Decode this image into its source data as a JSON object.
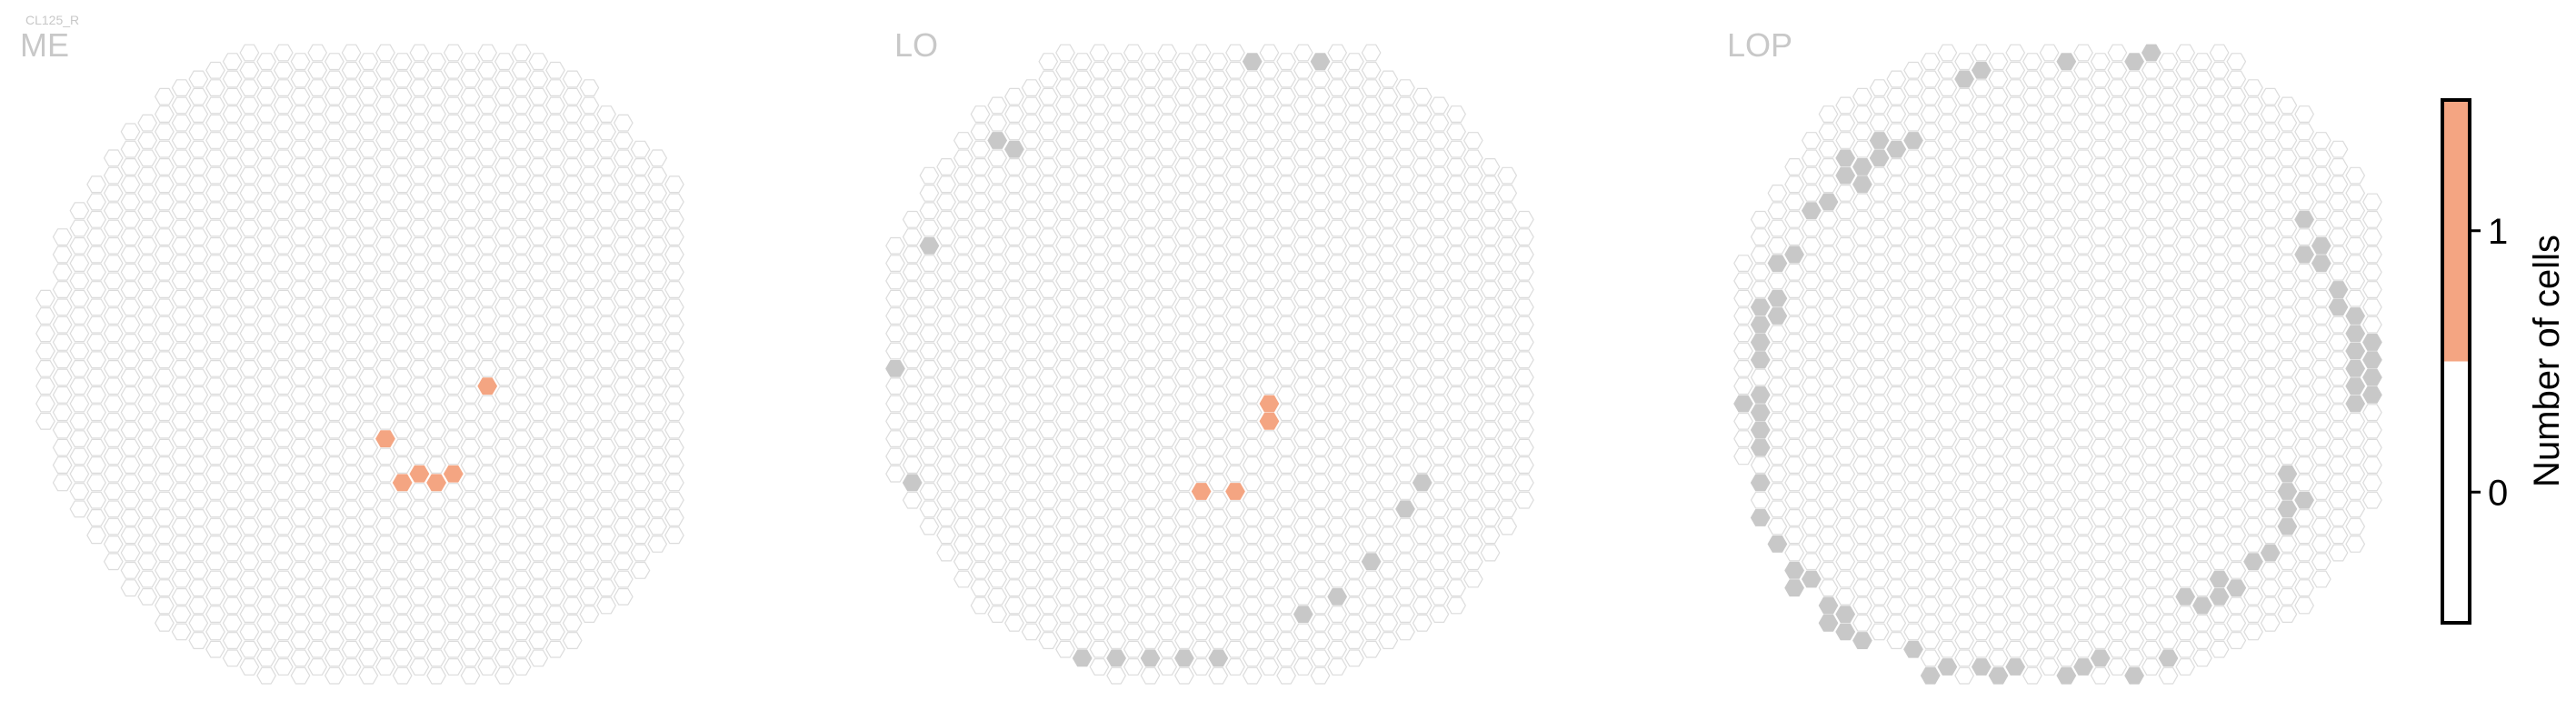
{
  "cell_type": "CL125_R",
  "chart_data": {
    "type": "heatmap",
    "colorbar": {
      "label": "Number of cells",
      "ticks": [
        "0",
        "1"
      ],
      "range": [
        -0.5,
        1.5
      ],
      "colors": [
        {
          "from": -0.5,
          "to": 0.5,
          "color": "#ffffff"
        },
        {
          "from": 0.5,
          "to": 1.5,
          "color": "#f4a582"
        }
      ]
    },
    "panels": [
      {
        "region": "ME",
        "cells_with_count_1": [
          [
            20,
            22
          ],
          [
            21,
            24
          ],
          [
            22,
            24
          ],
          [
            23,
            24
          ],
          [
            24,
            24
          ],
          [
            26,
            19
          ]
        ],
        "gray_columns": []
      },
      {
        "region": "LO",
        "cells_with_count_1": [
          [
            22,
            20
          ],
          [
            22,
            21
          ],
          [
            18,
            25
          ],
          [
            20,
            25
          ]
        ],
        "gray_columns": [
          [
            21,
            0
          ],
          [
            25,
            0
          ],
          [
            6,
            5
          ],
          [
            7,
            5
          ],
          [
            2,
            11
          ],
          [
            0,
            18
          ],
          [
            1,
            24
          ],
          [
            31,
            24
          ],
          [
            30,
            26
          ],
          [
            28,
            29
          ],
          [
            26,
            31
          ],
          [
            24,
            32
          ],
          [
            11,
            34
          ],
          [
            13,
            34
          ],
          [
            15,
            34
          ],
          [
            17,
            34
          ],
          [
            19,
            34
          ]
        ]
      },
      {
        "region": "LOP",
        "cells_with_count_1": [],
        "gray_columns": [
          [
            19,
            0
          ],
          [
            23,
            0
          ],
          [
            24,
            0
          ],
          [
            13,
            1
          ],
          [
            14,
            1
          ],
          [
            8,
            5
          ],
          [
            9,
            5
          ],
          [
            10,
            5
          ],
          [
            6,
            6
          ],
          [
            7,
            6
          ],
          [
            8,
            6
          ],
          [
            6,
            7
          ],
          [
            7,
            7
          ],
          [
            5,
            8
          ],
          [
            4,
            9
          ],
          [
            3,
            11
          ],
          [
            2,
            12
          ],
          [
            33,
            9
          ],
          [
            33,
            11
          ],
          [
            34,
            11
          ],
          [
            34,
            12
          ],
          [
            35,
            13
          ],
          [
            35,
            14
          ],
          [
            36,
            15
          ],
          [
            36,
            16
          ],
          [
            37,
            16
          ],
          [
            36,
            17
          ],
          [
            37,
            17
          ],
          [
            36,
            18
          ],
          [
            37,
            18
          ],
          [
            36,
            19
          ],
          [
            37,
            19
          ],
          [
            36,
            20
          ],
          [
            1,
            14
          ],
          [
            2,
            14
          ],
          [
            1,
            15
          ],
          [
            2,
            15
          ],
          [
            1,
            16
          ],
          [
            1,
            17
          ],
          [
            1,
            19
          ],
          [
            0,
            20
          ],
          [
            1,
            20
          ],
          [
            1,
            21
          ],
          [
            1,
            22
          ],
          [
            1,
            24
          ],
          [
            1,
            26
          ],
          [
            2,
            28
          ],
          [
            3,
            29
          ],
          [
            3,
            30
          ],
          [
            4,
            30
          ],
          [
            5,
            31
          ],
          [
            5,
            32
          ],
          [
            6,
            32
          ],
          [
            6,
            33
          ],
          [
            7,
            33
          ],
          [
            32,
            24
          ],
          [
            32,
            25
          ],
          [
            33,
            25
          ],
          [
            32,
            26
          ],
          [
            32,
            27
          ],
          [
            31,
            28
          ],
          [
            30,
            29
          ],
          [
            29,
            30
          ],
          [
            28,
            30
          ],
          [
            27,
            31
          ],
          [
            26,
            31
          ],
          [
            28,
            31
          ],
          [
            10,
            34
          ],
          [
            11,
            35
          ],
          [
            12,
            35
          ],
          [
            14,
            35
          ],
          [
            15,
            35
          ],
          [
            16,
            35
          ],
          [
            19,
            35
          ],
          [
            20,
            35
          ],
          [
            21,
            34
          ],
          [
            23,
            35
          ],
          [
            25,
            34
          ]
        ]
      }
    ]
  }
}
